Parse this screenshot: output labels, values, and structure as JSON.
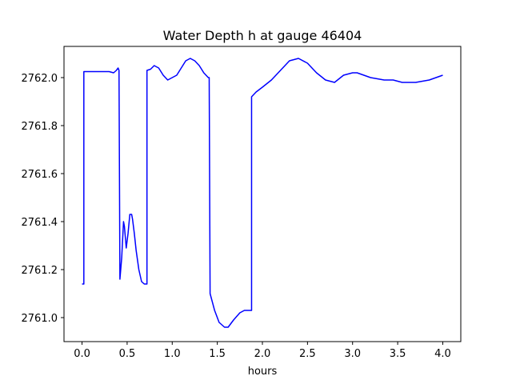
{
  "chart_data": {
    "type": "line",
    "title": "Water Depth h at gauge 46404",
    "xlabel": "hours",
    "ylabel": "",
    "xlim": [
      -0.2,
      4.2
    ],
    "ylim": [
      2760.9,
      2762.13
    ],
    "xticks": [
      0.0,
      0.5,
      1.0,
      1.5,
      2.0,
      2.5,
      3.0,
      3.5,
      4.0
    ],
    "xtick_labels": [
      "0.0",
      "0.5",
      "1.0",
      "1.5",
      "2.0",
      "2.5",
      "3.0",
      "3.5",
      "4.0"
    ],
    "yticks": [
      2761.0,
      2761.2,
      2761.4,
      2761.6,
      2761.8,
      2762.0
    ],
    "ytick_labels": [
      "2761.0",
      "2761.2",
      "2761.4",
      "2761.6",
      "2761.8",
      "2762.0"
    ],
    "grid": false,
    "series": [
      {
        "color": "#0000ff",
        "x": [
          0.0,
          0.02,
          0.02,
          0.1,
          0.2,
          0.3,
          0.35,
          0.38,
          0.4,
          0.41,
          0.42,
          0.44,
          0.46,
          0.47,
          0.49,
          0.51,
          0.53,
          0.55,
          0.56,
          0.58,
          0.6,
          0.63,
          0.66,
          0.69,
          0.71,
          0.72,
          0.72,
          0.76,
          0.8,
          0.85,
          0.9,
          0.95,
          1.0,
          1.05,
          1.1,
          1.15,
          1.2,
          1.25,
          1.3,
          1.35,
          1.4,
          1.41,
          1.42,
          1.47,
          1.52,
          1.58,
          1.62,
          1.68,
          1.75,
          1.8,
          1.86,
          1.88,
          1.88,
          1.93,
          2.0,
          2.1,
          2.2,
          2.3,
          2.4,
          2.5,
          2.6,
          2.7,
          2.8,
          2.9,
          3.0,
          3.05,
          3.2,
          3.35,
          3.45,
          3.55,
          3.7,
          3.85,
          4.0
        ],
        "y": [
          2761.14,
          2761.14,
          2762.025,
          2762.025,
          2762.025,
          2762.025,
          2762.02,
          2762.03,
          2762.04,
          2762.03,
          2761.16,
          2761.25,
          2761.4,
          2761.38,
          2761.29,
          2761.35,
          2761.43,
          2761.43,
          2761.41,
          2761.35,
          2761.28,
          2761.2,
          2761.15,
          2761.14,
          2761.14,
          2761.14,
          2762.03,
          2762.035,
          2762.05,
          2762.04,
          2762.01,
          2761.99,
          2762.0,
          2762.01,
          2762.04,
          2762.07,
          2762.08,
          2762.07,
          2762.05,
          2762.02,
          2762.0,
          2762.0,
          2761.1,
          2761.03,
          2760.98,
          2760.96,
          2760.96,
          2760.99,
          2761.02,
          2761.03,
          2761.03,
          2761.03,
          2761.92,
          2761.94,
          2761.96,
          2761.99,
          2762.03,
          2762.07,
          2762.08,
          2762.06,
          2762.02,
          2761.99,
          2761.98,
          2762.01,
          2762.02,
          2762.02,
          2762.0,
          2761.99,
          2761.99,
          2761.98,
          2761.98,
          2761.99,
          2762.01
        ]
      }
    ]
  }
}
